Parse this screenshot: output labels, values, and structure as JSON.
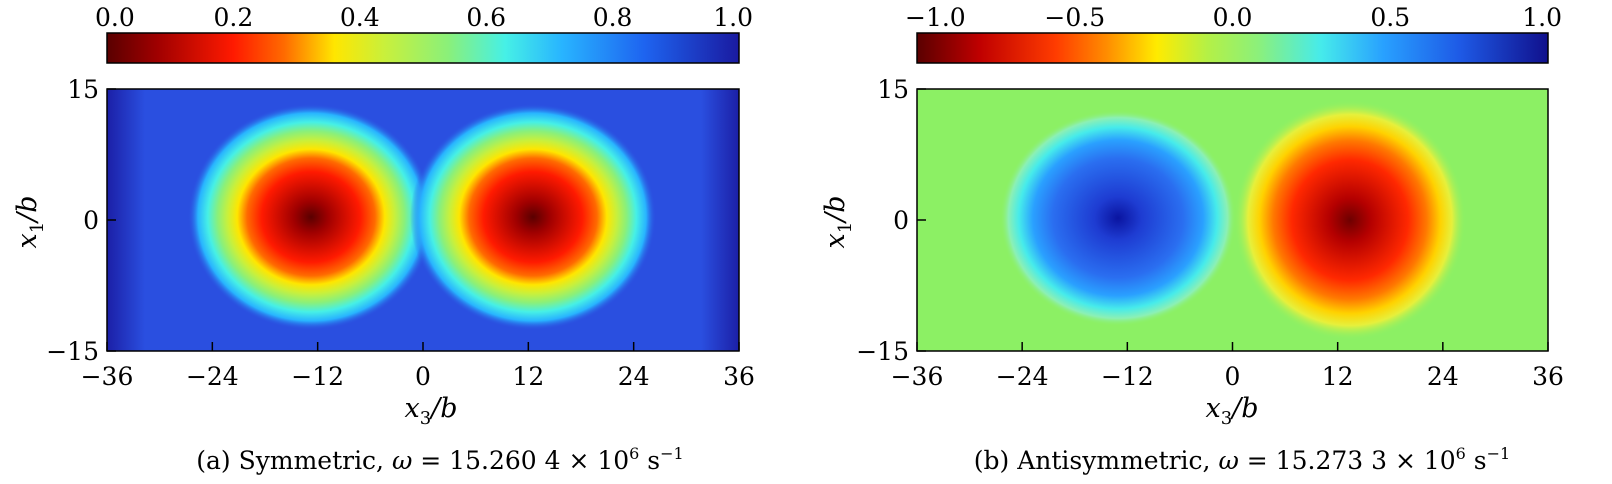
{
  "chart_data": [
    {
      "type": "heatmap",
      "panel_id": "a",
      "caption": {
        "prefix": "(a) Symmetric, ",
        "omega": "ω",
        "value": " = 15.260 4 × 10",
        "exp": "6",
        "unit": " s",
        "unit_exp": "−1"
      },
      "xlabel": {
        "main": "x",
        "sub": "3",
        "tail": "/b"
      },
      "ylabel": {
        "main": "x",
        "sub": "1",
        "tail": "/b"
      },
      "xlim": [
        -36,
        36
      ],
      "ylim": [
        -15,
        15
      ],
      "x_ticks": [
        "−36",
        "−24",
        "−12",
        "0",
        "12",
        "24",
        "36"
      ],
      "x_tick_values": [
        -36,
        -24,
        -12,
        0,
        12,
        24,
        36
      ],
      "y_ticks": [
        "−15",
        "0",
        "15"
      ],
      "y_tick_values": [
        -15,
        0,
        15
      ],
      "colorbar": {
        "range": [
          0.0,
          1.0
        ],
        "ticks": [
          "0.0",
          "0.2",
          "0.4",
          "0.6",
          "0.8",
          "1.0"
        ],
        "tick_values": [
          0.0,
          0.2,
          0.4,
          0.6,
          0.8,
          1.0
        ],
        "colormap": "reversed-jet (dark red → red → yellow → cyan → blue)"
      },
      "features": [
        {
          "kind": "minimum",
          "x": -13,
          "y": 0,
          "value": 0.0
        },
        {
          "kind": "minimum",
          "x": 13,
          "y": 0,
          "value": 0.0
        }
      ],
      "background_value": 1.0
    },
    {
      "type": "heatmap",
      "panel_id": "b",
      "caption": {
        "prefix": "(b) Antisymmetric, ",
        "omega": "ω",
        "value": " = 15.273 3 × 10",
        "exp": "6",
        "unit": " s",
        "unit_exp": "−1"
      },
      "xlabel": {
        "main": "x",
        "sub": "3",
        "tail": "/b"
      },
      "ylabel": {
        "main": "x",
        "sub": "1",
        "tail": "/b"
      },
      "xlim": [
        -36,
        36
      ],
      "ylim": [
        -15,
        15
      ],
      "x_ticks": [
        "−36",
        "−24",
        "−12",
        "0",
        "12",
        "24",
        "36"
      ],
      "x_tick_values": [
        -36,
        -24,
        -12,
        0,
        12,
        24,
        36
      ],
      "y_ticks": [
        "−15",
        "0",
        "15"
      ],
      "y_tick_values": [
        -15,
        0,
        15
      ],
      "colorbar": {
        "range": [
          -1.0,
          1.0
        ],
        "ticks": [
          "−1.0",
          "−0.5",
          "0.0",
          "0.5",
          "1.0"
        ],
        "tick_values": [
          -1.0,
          -0.5,
          0.0,
          0.5,
          1.0
        ],
        "colormap": "reversed-jet (dark red → red → yellow → green → cyan → blue)"
      },
      "features": [
        {
          "kind": "maximum",
          "x": -14,
          "y": 0,
          "value": 1.0
        },
        {
          "kind": "minimum",
          "x": 14,
          "y": 0,
          "value": -1.0
        }
      ],
      "background_value": 0.0
    }
  ]
}
